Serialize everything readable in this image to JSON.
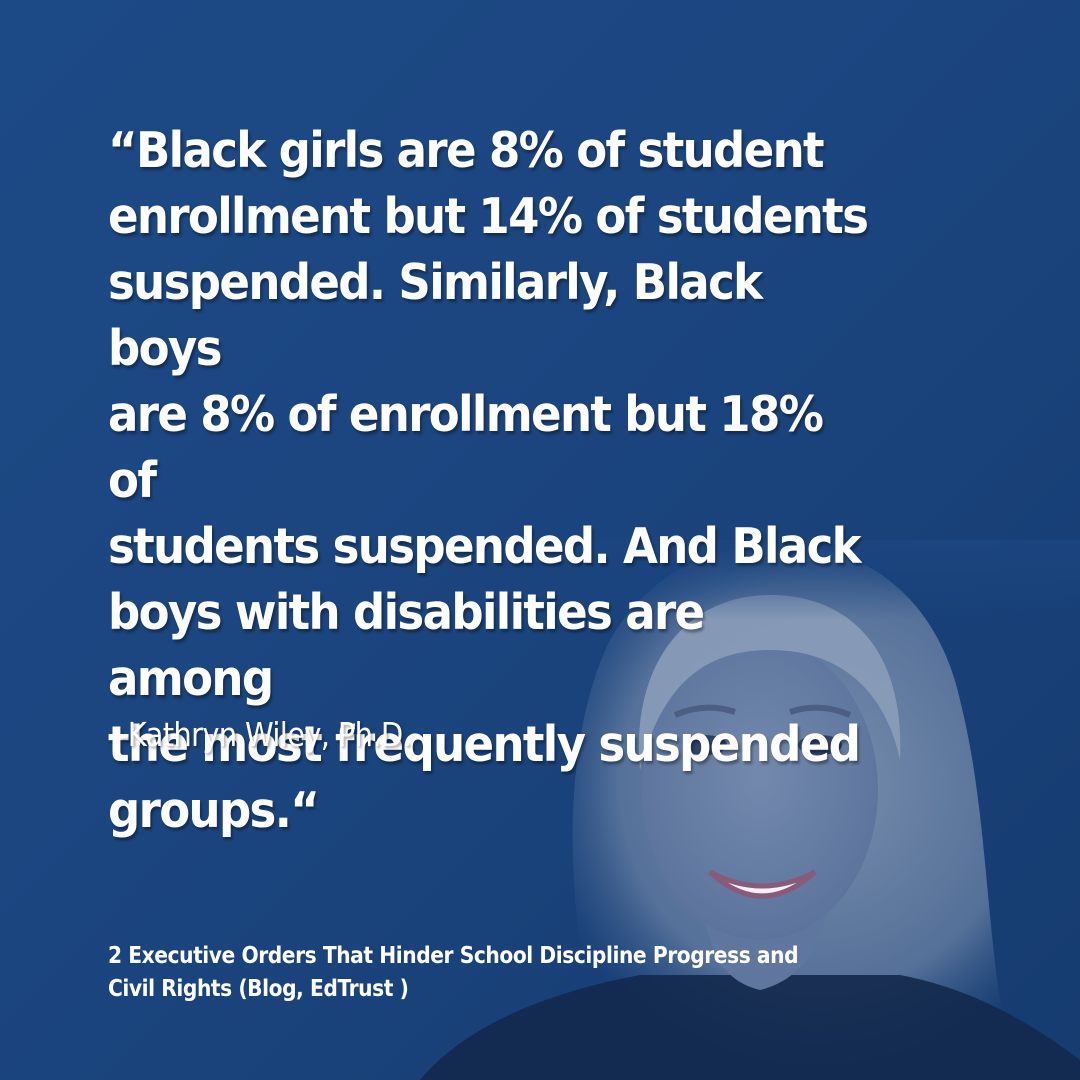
{
  "quote": {
    "lines": [
      "“Black girls are 8% of student",
      "enrollment but 14% of students",
      "suspended. Similarly, Black boys",
      "are 8% of enrollment but 18% of",
      "students suspended. And Black",
      "boys with disabilities are among",
      "the most frequently suspended",
      "groups.“"
    ]
  },
  "attribution": "-Kathryn Wiley, Ph.D.",
  "source": {
    "line1": "2 Executive Orders That Hinder School Discipline Progress and",
    "line2": "Civil Rights  (Blog, EdTrust )"
  },
  "colors": {
    "background": "#1b457f",
    "text": "#ffffff"
  }
}
